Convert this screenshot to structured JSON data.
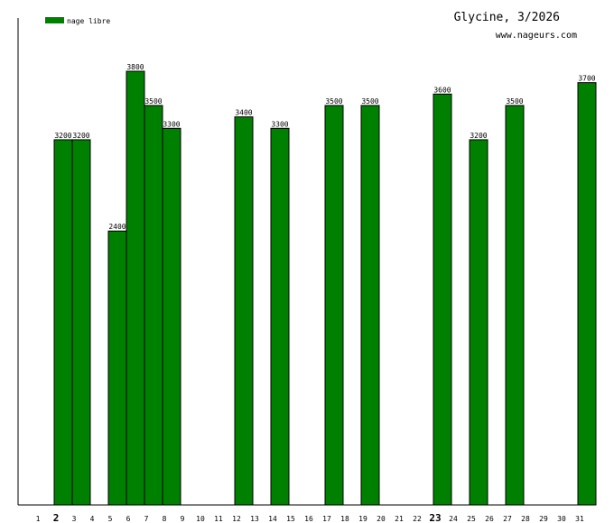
{
  "header": {
    "title": "Glycine, 3/2026",
    "site": "www.nageurs.com"
  },
  "colors": {
    "bar": "#008000",
    "bar_stroke": "#000000",
    "axis": "#000000",
    "text": "#000000",
    "background": "#ffffff"
  },
  "chart_data": {
    "type": "bar",
    "title": "Glycine, 3/2026",
    "xlabel": "",
    "ylabel": "",
    "ylim": [
      0,
      3800
    ],
    "grid": false,
    "legend_position": "top-left",
    "categories": [
      "1",
      "2",
      "3",
      "4",
      "5",
      "6",
      "7",
      "8",
      "9",
      "10",
      "11",
      "12",
      "13",
      "14",
      "15",
      "16",
      "17",
      "18",
      "19",
      "20",
      "21",
      "22",
      "23",
      "24",
      "25",
      "26",
      "27",
      "28",
      "29",
      "30",
      "31"
    ],
    "highlighted_categories": [
      "2",
      "23"
    ],
    "series": [
      {
        "name": "nage libre",
        "values": [
          null,
          3200,
          3200,
          null,
          2400,
          3800,
          3500,
          3300,
          null,
          null,
          null,
          3400,
          null,
          3300,
          null,
          null,
          3500,
          null,
          3500,
          null,
          null,
          null,
          3600,
          null,
          3200,
          null,
          3500,
          null,
          null,
          null,
          3700
        ]
      }
    ]
  }
}
